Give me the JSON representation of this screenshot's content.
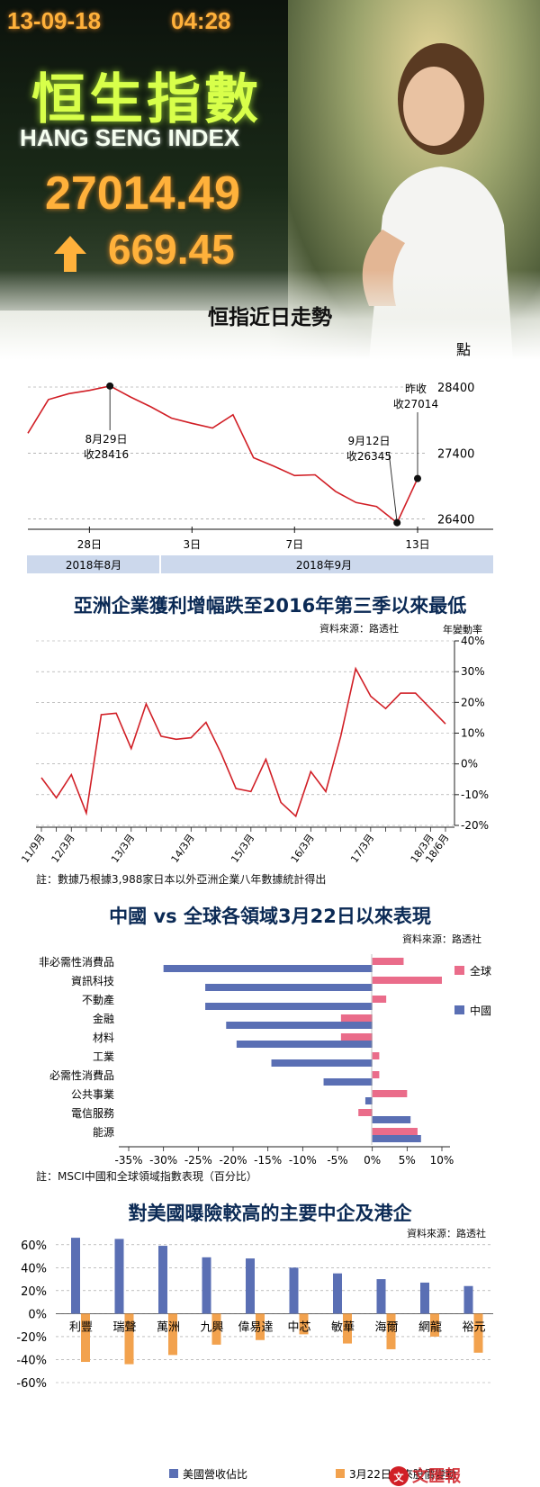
{
  "photo": {
    "board_date": "13-09-18",
    "board_time": "04:28",
    "board_title_cn": "恒生指數",
    "board_title_en": "HANG SENG INDEX",
    "board_value": "27014.49",
    "board_change": "669.45"
  },
  "colors": {
    "line_red": "#d11f26",
    "bar_blue": "#5a6fb4",
    "bar_pink": "#ea6c8a",
    "bar_orange": "#f2a24e",
    "title_navy": "#0b2a55",
    "month_band": "#ccd8ec"
  },
  "chart_data": [
    {
      "type": "line",
      "title": "恒指近日走勢",
      "ylabel": "點",
      "y_ticks": [
        "28400",
        "27400",
        "26400"
      ],
      "ylim": [
        26300,
        28700
      ],
      "x_ticks": [
        "28日",
        "3日",
        "7日",
        "13日"
      ],
      "month_labels": [
        "2018年8月",
        "2018年9月"
      ],
      "series": [
        {
          "values": [
            27700,
            28210,
            28300,
            28350,
            28416,
            28250,
            28100,
            27930,
            27850,
            27780,
            27980,
            27330,
            27200,
            27060,
            27070,
            26820,
            26650,
            26590,
            26345,
            27014
          ]
        }
      ],
      "annotations": [
        {
          "label_line1": "8月29日",
          "label_line2": "收28416"
        },
        {
          "label_line1": "9月12日",
          "label_line2": "收26345"
        },
        {
          "label_line1": "昨收",
          "label_line2": "收27014"
        }
      ],
      "grid": true
    },
    {
      "type": "line",
      "title": "亞洲企業獲利增幅跌至2016年第三季以來最低",
      "source": "資料來源：路透社",
      "ylabel": "年變動率",
      "ylim": [
        -20,
        40
      ],
      "y_ticks": [
        "40%",
        "30%",
        "20%",
        "10%",
        "0%",
        "-10%",
        "-20%"
      ],
      "x_ticks": [
        "11/9月",
        "12/3月",
        "13/3月",
        "14/3月",
        "15/3月",
        "16/3月",
        "17/3月",
        "18/3月",
        "18/6月"
      ],
      "series": [
        {
          "values": [
            -4.5,
            -11,
            -3.5,
            -16,
            16,
            16.5,
            5,
            19.5,
            9,
            8,
            8.5,
            13.5,
            3.5,
            -8,
            -9,
            1.5,
            -12.5,
            -17,
            -2.5,
            -9,
            9,
            31,
            22,
            18,
            23,
            23,
            18,
            13
          ]
        }
      ],
      "note": "註：數據乃根據3,988家日本以外亞洲企業八年數據統計得出",
      "grid": true
    },
    {
      "type": "bar",
      "orientation": "horizontal",
      "title": "中國 vs 全球各領域3月22日以來表現",
      "source": "資料來源：路透社",
      "categories": [
        "非必需性消費品",
        "資訊科技",
        "不動產",
        "金融",
        "材料",
        "工業",
        "必需性消費品",
        "公共事業",
        "電信服務",
        "能源"
      ],
      "series": [
        {
          "name": "全球",
          "values": [
            4.5,
            10,
            2,
            -4.5,
            -4.5,
            1,
            1,
            5,
            -2,
            6.5
          ]
        },
        {
          "name": "中國",
          "values": [
            -30,
            -24,
            -24,
            -21,
            -19.5,
            -14.5,
            -7,
            -1,
            5.5,
            7
          ]
        }
      ],
      "xlim": [
        -35,
        10
      ],
      "x_ticks": [
        "-35%",
        "-30%",
        "-25%",
        "-20%",
        "-15%",
        "-10%",
        "-5%",
        "0%",
        "5%",
        "10%"
      ],
      "legend_position": "right",
      "note": "註：MSCI中國和全球領域指數表現（百分比）"
    },
    {
      "type": "bar",
      "title": "對美國曝險較高的主要中企及港企",
      "source": "資料來源：路透社",
      "categories": [
        "利豐",
        "瑞聲",
        "萬洲",
        "九興",
        "偉易達",
        "中芯",
        "敏華",
        "海爾",
        "網龍",
        "裕元"
      ],
      "series": [
        {
          "name": "美國營收佔比",
          "values": [
            66,
            65,
            59,
            49,
            48,
            40,
            35,
            30,
            27,
            24
          ]
        },
        {
          "name": "3月22日以來股價變動",
          "values": [
            -42,
            -44,
            -36,
            -27,
            -23,
            -18,
            -26,
            -31,
            -20,
            -34
          ]
        }
      ],
      "ylim": [
        -60,
        70
      ],
      "y_ticks": [
        "60%",
        "40%",
        "20%",
        "0%",
        "-20%",
        "-40%",
        "-60%"
      ],
      "legend_position": "bottom",
      "grid": true
    }
  ],
  "footer": {
    "watermark": "文匯報"
  }
}
